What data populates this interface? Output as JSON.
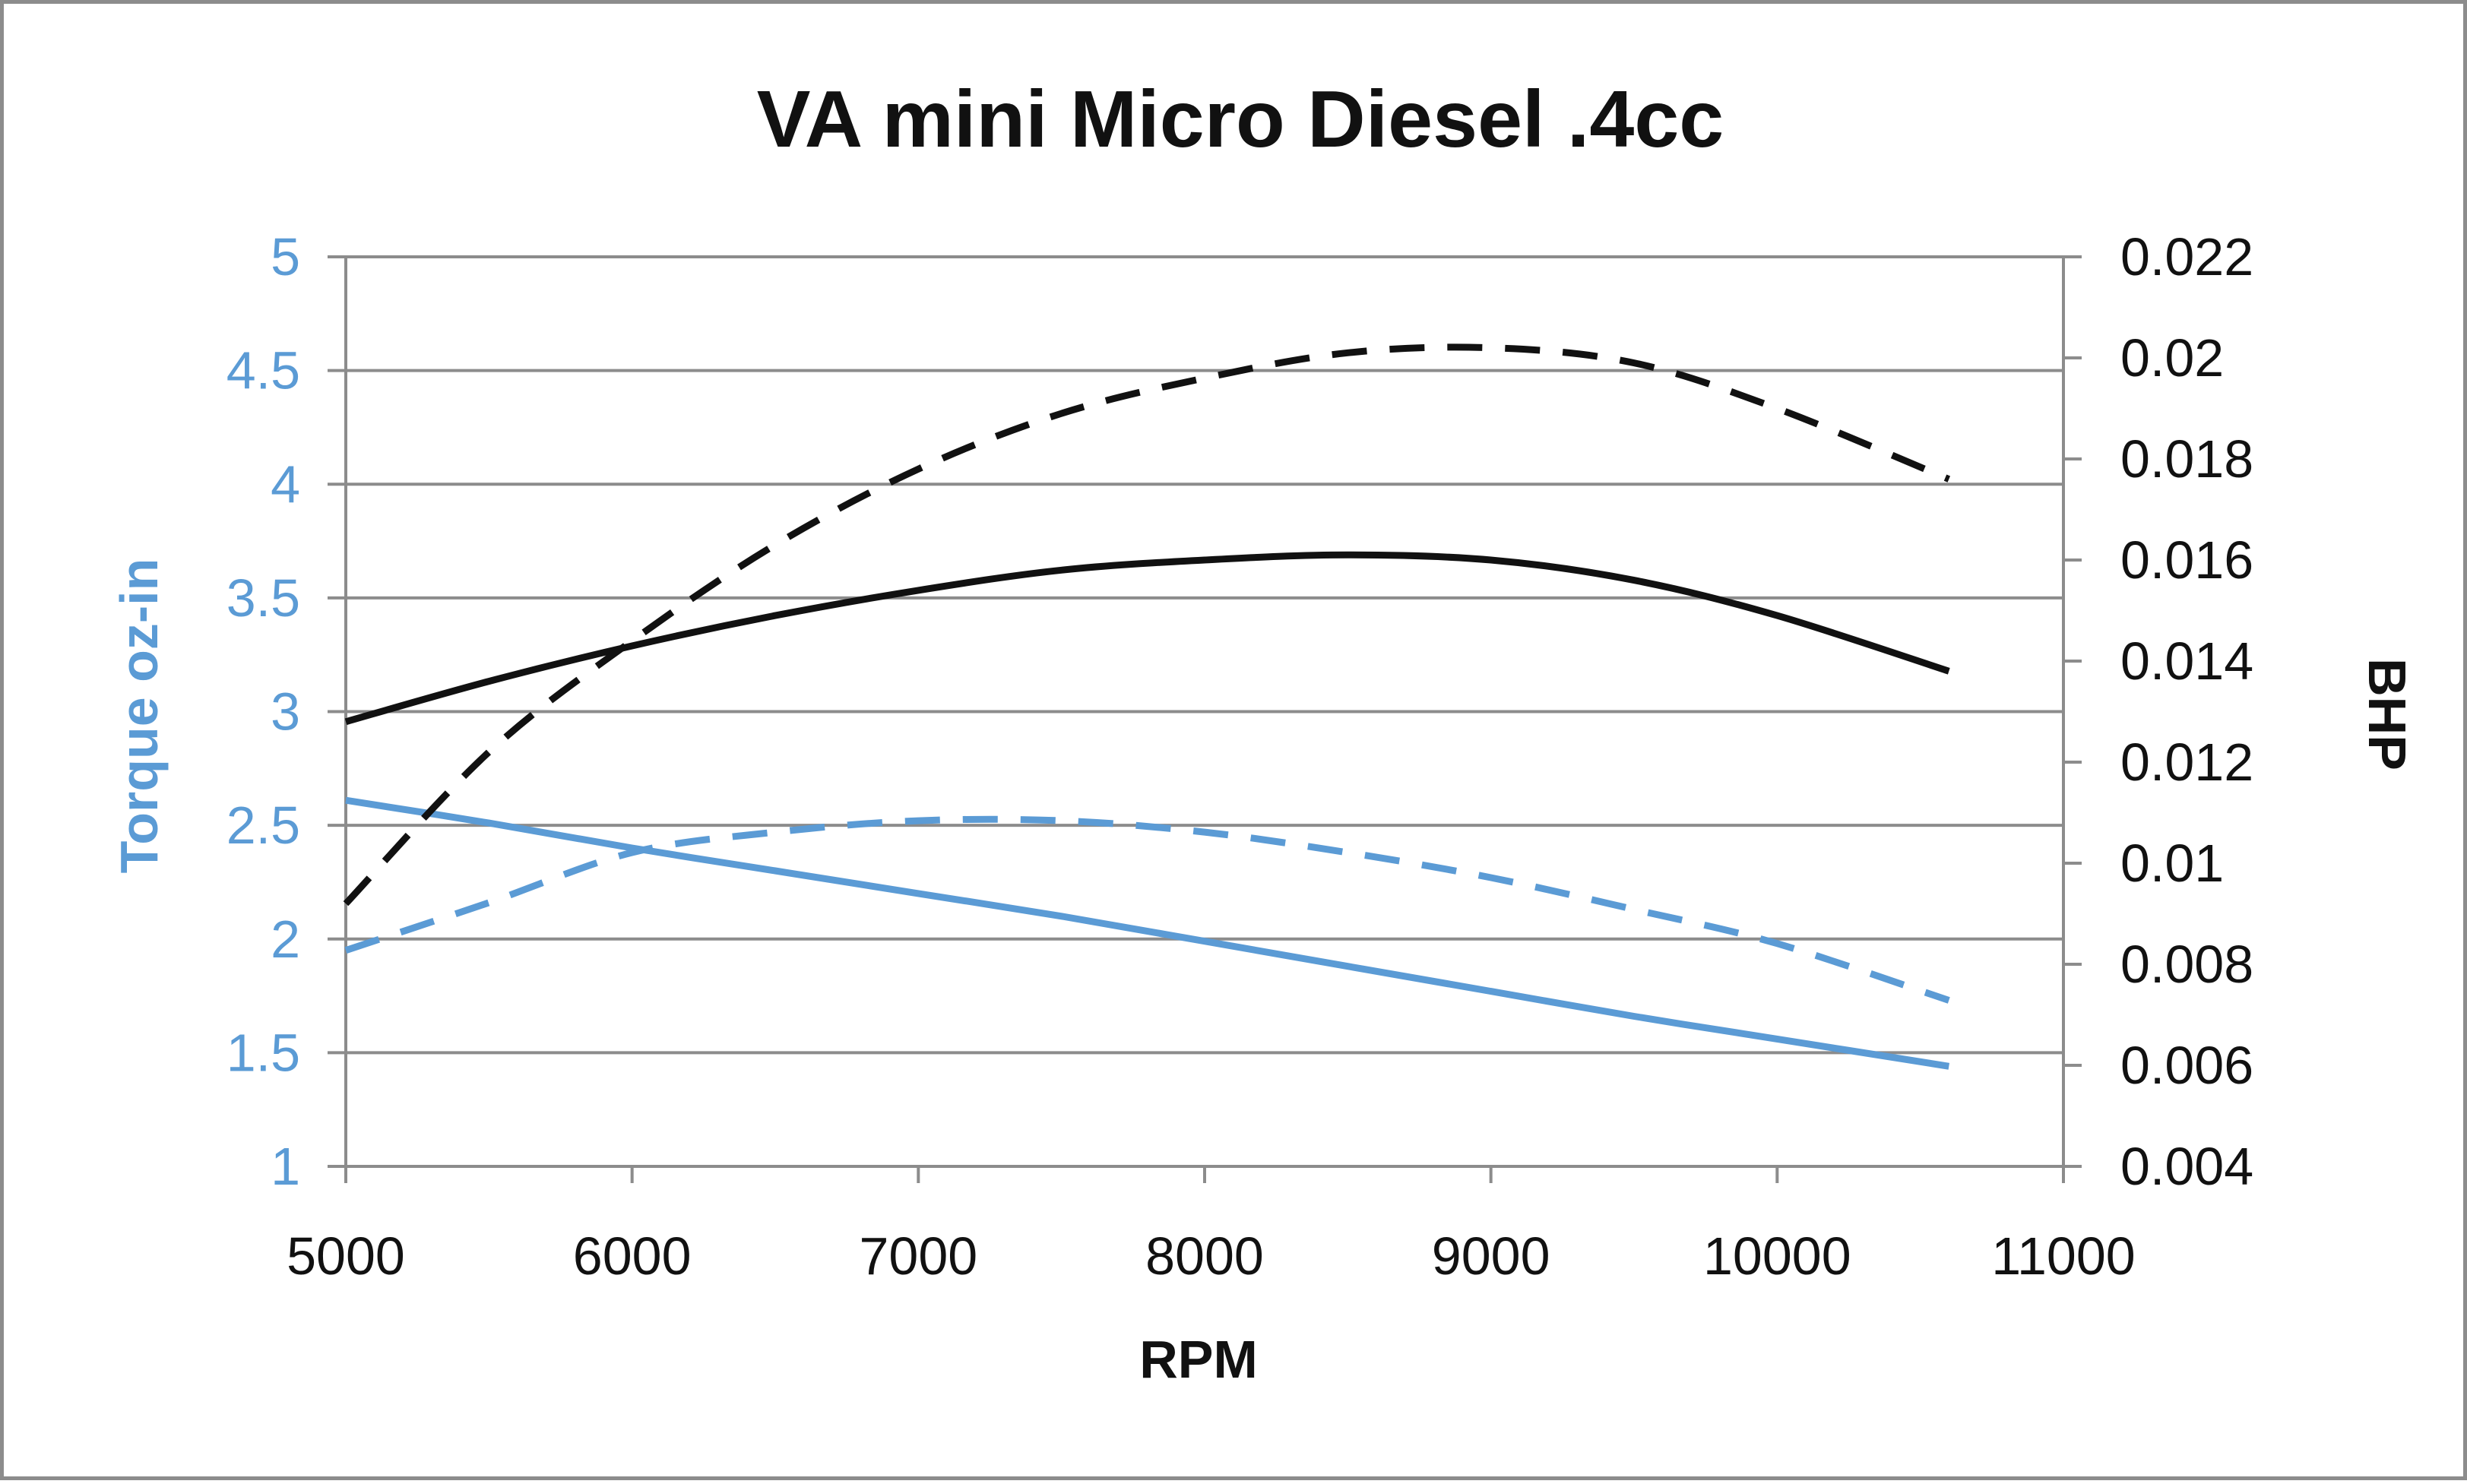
{
  "chart_data": {
    "type": "line",
    "title": "VA mini Micro Diesel .4cc",
    "xlabel": "RPM",
    "ylabel": "Torque oz-in",
    "y2label": "BHP",
    "xlim": [
      5000,
      11000
    ],
    "ylim": [
      1,
      5
    ],
    "y2lim": [
      0.004,
      0.022
    ],
    "x_ticks": [
      5000,
      6000,
      7000,
      8000,
      9000,
      10000,
      11000
    ],
    "y_ticks": [
      1,
      1.5,
      2,
      2.5,
      3,
      3.5,
      4,
      4.5,
      5
    ],
    "y2_ticks": [
      "0.004",
      "0.006",
      "0.008",
      "0.01",
      "0.012",
      "0.014",
      "0.016",
      "0.018",
      "0.02",
      "0.022"
    ],
    "grid": true,
    "legend": "none",
    "colors": {
      "torque_axis": "#5b9bd5",
      "torque_series": "#5b9bd5",
      "bhp_axis": "#111111",
      "bhp_series": "#111111",
      "gridline": "#8c8c8c",
      "title": "#111111"
    },
    "x": [
      5000,
      5500,
      6000,
      6500,
      7000,
      7500,
      8000,
      8500,
      9000,
      9500,
      10000,
      10600
    ],
    "series": [
      {
        "axis": "left",
        "color": "#5b9bd5",
        "dash": "solid",
        "values": [
          2.61,
          2.51,
          2.4,
          2.3,
          2.2,
          2.1,
          1.99,
          1.88,
          1.77,
          1.66,
          1.56,
          1.44
        ]
      },
      {
        "axis": "left",
        "color": "#5b9bd5",
        "dash": "dashed",
        "values": [
          1.95,
          2.16,
          2.38,
          2.47,
          2.52,
          2.52,
          2.47,
          2.38,
          2.27,
          2.13,
          1.98,
          1.73
        ]
      },
      {
        "axis": "right",
        "color": "#111111",
        "dash": "solid",
        "values": [
          0.0128,
          0.0136,
          0.0143,
          0.0149,
          0.0154,
          0.0158,
          0.016,
          0.0161,
          0.016,
          0.0156,
          0.0149,
          0.0138
        ]
      },
      {
        "axis": "right",
        "color": "#111111",
        "dash": "dashed",
        "values": [
          0.0092,
          0.0122,
          0.0144,
          0.0163,
          0.0178,
          0.0189,
          0.0196,
          0.0201,
          0.0202,
          0.0199,
          0.019,
          0.0176
        ]
      }
    ]
  }
}
